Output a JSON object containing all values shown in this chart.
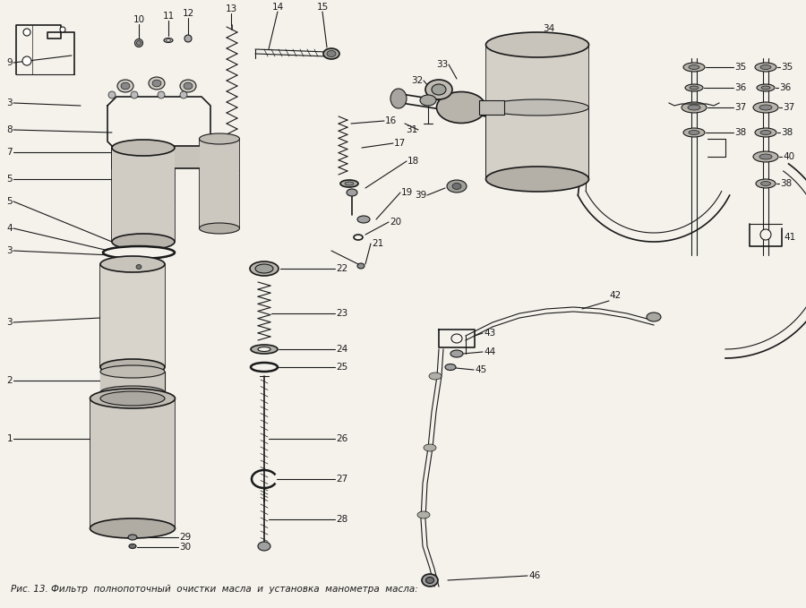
{
  "caption": "Рис. 13. Фильтр  полнопоточный  очистки  масла  и  установка  манометра  масла:",
  "bg_color": "#f5f2ec",
  "line_color": "#1a1a1a",
  "figsize": [
    9.0,
    6.79
  ],
  "dpi": 100
}
